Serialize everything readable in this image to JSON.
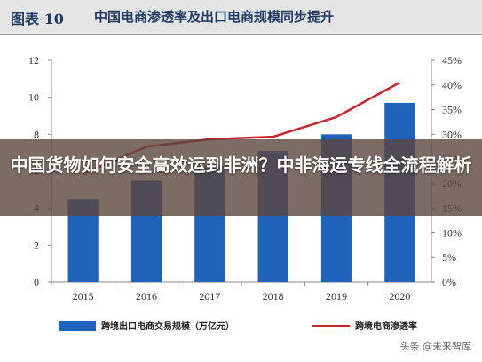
{
  "header": {
    "figure_number": "图表 10",
    "figure_title": "中国电商渗透率及出口电商规模同步提升"
  },
  "banner": {
    "headline": "中国货物如何安全高效运到非洲？中非海运专线全流程解析"
  },
  "legend": {
    "bar_label": "跨境出口电商交易规模（万亿元）",
    "line_label": "跨境电商渗透率"
  },
  "watermark": "头条 @未来智库",
  "colors": {
    "bar": "#1e63b9",
    "line": "#c8242b",
    "header_bg": "#e5e5e5",
    "title": "#1f3a64"
  },
  "chart_data": {
    "type": "bar",
    "categories": [
      "2015",
      "2016",
      "2017",
      "2018",
      "2019",
      "2020"
    ],
    "series": [
      {
        "name": "跨境出口电商交易规模（万亿元）",
        "type": "bar",
        "axis": "left",
        "values": [
          4.5,
          5.5,
          6.3,
          7.1,
          8.0,
          9.7
        ]
      },
      {
        "name": "跨境电商渗透率",
        "type": "line",
        "axis": "right",
        "values": [
          22.0,
          27.5,
          29.0,
          29.5,
          33.5,
          40.5
        ]
      }
    ],
    "y_left": {
      "ylim": [
        0,
        12
      ],
      "ticks": [
        "0",
        "2",
        "4",
        "6",
        "8",
        "10",
        "12"
      ]
    },
    "y_right": {
      "ylim": [
        0,
        45
      ],
      "ticks": [
        "0%",
        "5%",
        "10%",
        "15%",
        "20%",
        "25%",
        "30%",
        "35%",
        "40%",
        "45%"
      ]
    },
    "grid": false
  }
}
